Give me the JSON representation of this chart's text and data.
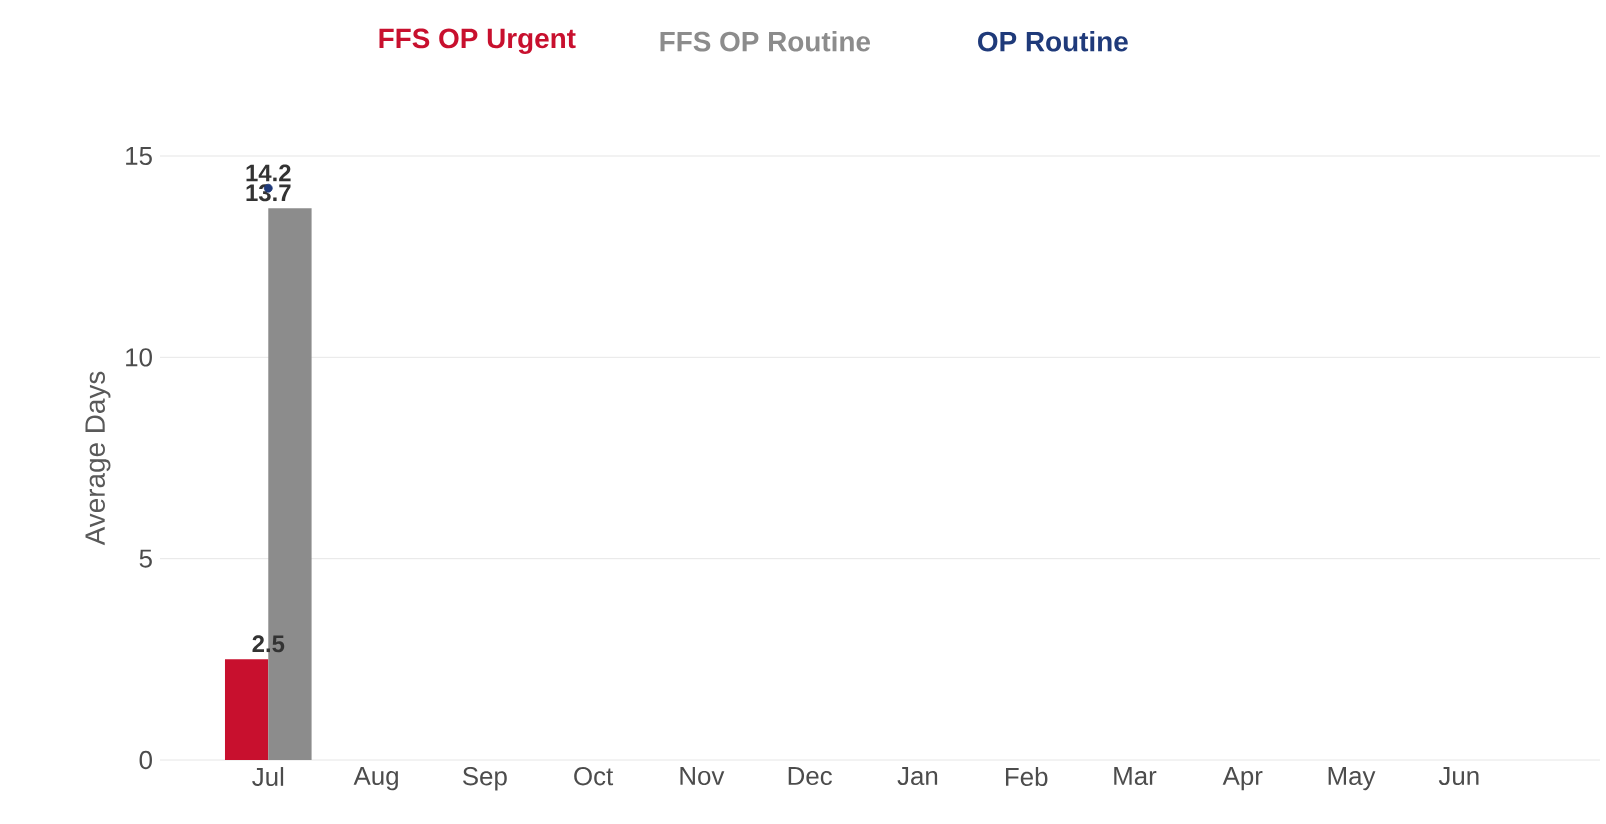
{
  "chart_data": {
    "type": "bar",
    "ylabel": "Average Days",
    "categories": [
      "Jul",
      "Aug",
      "Sep",
      "Oct",
      "Nov",
      "Dec",
      "Jan",
      "Feb",
      "Mar",
      "Apr",
      "May",
      "Jun"
    ],
    "series": [
      {
        "name": "FFS OP Urgent",
        "color": "#c8102e",
        "values": [
          2.5,
          null,
          null,
          null,
          null,
          null,
          null,
          null,
          null,
          null,
          null,
          null
        ]
      },
      {
        "name": "FFS OP Routine",
        "color": "#8c8c8c",
        "values": [
          13.7,
          null,
          null,
          null,
          null,
          null,
          null,
          null,
          null,
          null,
          null,
          null
        ]
      },
      {
        "name": "OP Routine",
        "type": "scatter",
        "color": "#1f3a7a",
        "values": [
          14.2,
          null,
          null,
          null,
          null,
          null,
          null,
          null,
          null,
          null,
          null,
          null
        ]
      }
    ],
    "ylim": [
      0,
      15
    ],
    "yticks": [
      0,
      5,
      10,
      15
    ],
    "grid": "y",
    "legend": "top",
    "data_labels": true,
    "marker": "circle"
  }
}
